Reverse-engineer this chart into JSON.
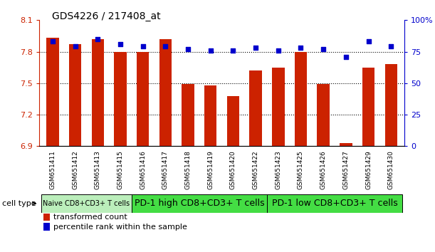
{
  "title": "GDS4226 / 217408_at",
  "samples": [
    "GSM651411",
    "GSM651412",
    "GSM651413",
    "GSM651415",
    "GSM651416",
    "GSM651417",
    "GSM651418",
    "GSM651419",
    "GSM651420",
    "GSM651422",
    "GSM651423",
    "GSM651425",
    "GSM651426",
    "GSM651427",
    "GSM651429",
    "GSM651430"
  ],
  "transformed_count": [
    7.93,
    7.87,
    7.92,
    7.8,
    7.8,
    7.92,
    7.49,
    7.48,
    7.38,
    7.62,
    7.65,
    7.8,
    7.49,
    6.93,
    7.65,
    7.68
  ],
  "percentile_rank": [
    83,
    79,
    85,
    81,
    79,
    79,
    77,
    76,
    76,
    78,
    76,
    78,
    77,
    71,
    83,
    79
  ],
  "ylim_left": [
    6.9,
    8.1
  ],
  "ylim_right": [
    0,
    100
  ],
  "yticks_left": [
    6.9,
    7.2,
    7.5,
    7.8,
    8.1
  ],
  "yticks_right": [
    0,
    25,
    50,
    75,
    100
  ],
  "ytick_labels_left": [
    "6.9",
    "7.2",
    "7.5",
    "7.8",
    "8.1"
  ],
  "ytick_labels_right": [
    "0",
    "25",
    "50",
    "75",
    "100%"
  ],
  "hgrid_values": [
    7.8,
    7.5,
    7.2
  ],
  "bar_color": "#cc2200",
  "dot_color": "#0000cc",
  "group_starts": [
    0,
    4,
    10
  ],
  "group_ends": [
    4,
    10,
    16
  ],
  "group_labels": [
    "Naive CD8+CD3+ T cells",
    "PD-1 high CD8+CD3+ T cells",
    "PD-1 low CD8+CD3+ T cells"
  ],
  "group_colors": [
    "#bbeebb",
    "#44dd44",
    "#44dd44"
  ],
  "group_fontsizes": [
    7,
    9,
    9
  ],
  "legend_items": [
    {
      "label": "transformed count",
      "color": "#cc2200"
    },
    {
      "label": "percentile rank within the sample",
      "color": "#0000cc"
    }
  ],
  "background_color": "#ffffff",
  "tick_label_color_left": "#cc2200",
  "tick_label_color_right": "#0000cc"
}
